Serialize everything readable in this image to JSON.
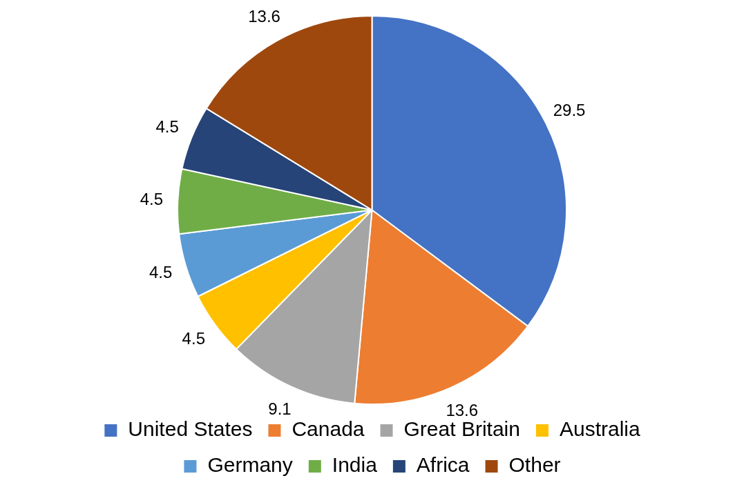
{
  "chart_data": {
    "type": "pie",
    "categories": [
      "United States",
      "Canada",
      "Great Britain",
      "Australia",
      "Germany",
      "India",
      "Africa",
      "Other"
    ],
    "values": [
      29.5,
      13.6,
      9.1,
      4.5,
      4.5,
      4.5,
      4.5,
      13.6
    ],
    "colors": [
      "#4472c4",
      "#ed7d31",
      "#a5a5a5",
      "#ffc000",
      "#5b9bd5",
      "#70ad47",
      "#264478",
      "#9e480e"
    ],
    "data_labels": true,
    "legend": "bottom"
  }
}
